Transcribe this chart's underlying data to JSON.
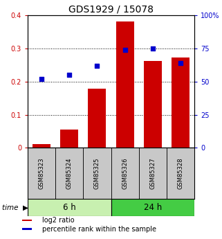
{
  "title": "GDS1929 / 15078",
  "categories": [
    "GSM85323",
    "GSM85324",
    "GSM85325",
    "GSM85326",
    "GSM85327",
    "GSM85328"
  ],
  "log2_ratio": [
    0.01,
    0.055,
    0.178,
    0.382,
    0.263,
    0.272
  ],
  "percentile_rank": [
    52,
    55,
    62,
    74,
    75,
    64
  ],
  "group_labels": [
    "6 h",
    "24 h"
  ],
  "group_colors": [
    "#c8f0b0",
    "#44cc44"
  ],
  "bar_color": "#cc0000",
  "scatter_color": "#0000cc",
  "left_ylim": [
    0,
    0.4
  ],
  "right_ylim": [
    0,
    100
  ],
  "left_yticks": [
    0,
    0.1,
    0.2,
    0.3,
    0.4
  ],
  "right_yticks": [
    0,
    25,
    50,
    75,
    100
  ],
  "left_yticklabels": [
    "0",
    "0.1",
    "0.2",
    "0.3",
    "0.4"
  ],
  "right_yticklabels": [
    "0",
    "25",
    "50",
    "75",
    "100%"
  ],
  "hline_values": [
    0.1,
    0.2,
    0.3
  ],
  "legend_labels": [
    "log2 ratio",
    "percentile rank within the sample"
  ],
  "time_label": "time",
  "label_area_color": "#c8c8c8",
  "bar_width": 0.65
}
